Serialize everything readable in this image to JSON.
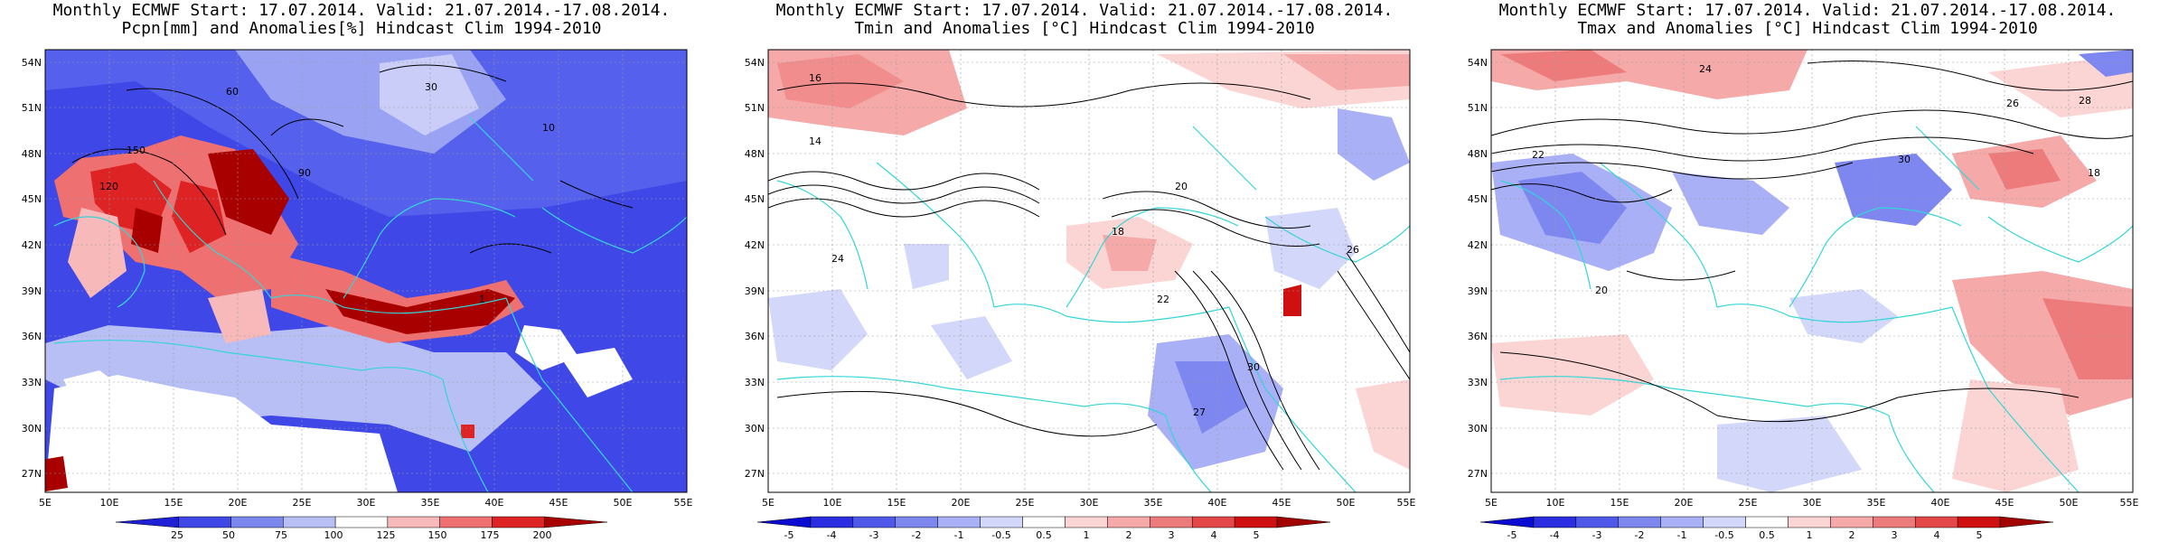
{
  "panels": [
    {
      "id": "precip",
      "title_line1": "Monthly ECMWF Start: 17.07.2014. Valid: 21.07.2014.-17.08.2014.",
      "title_line2": "Pcpn[mm] and Anomalies[%] Hindcast Clim 1994-2010",
      "lat_labels": [
        "54N",
        "51N",
        "48N",
        "45N",
        "42N",
        "39N",
        "36N",
        "33N",
        "30N",
        "27N"
      ],
      "lon_labels": [
        "5E",
        "10E",
        "15E",
        "20E",
        "25E",
        "30E",
        "35E",
        "40E",
        "45E",
        "50E",
        "55E"
      ],
      "colorbar_labels": [
        "25",
        "50",
        "75",
        "100",
        "125",
        "150",
        "175",
        "200"
      ],
      "colorbar_colors": [
        "#1f1fd6",
        "#3f47e6",
        "#7b86ee",
        "#b8bff5",
        "#ffffff",
        "#f7b9b9",
        "#ef7070",
        "#dd2323",
        "#a80000"
      ],
      "contour_labels": [
        "30",
        "60",
        "90",
        "10",
        "120",
        "150",
        "1"
      ]
    },
    {
      "id": "tmin",
      "title_line1": "Monthly ECMWF Start: 17.07.2014. Valid: 21.07.2014.-17.08.2014.",
      "title_line2": "Tmin and Anomalies [°C] Hindcast Clim 1994-2010",
      "lat_labels": [
        "54N",
        "51N",
        "48N",
        "45N",
        "42N",
        "39N",
        "36N",
        "33N",
        "30N",
        "27N"
      ],
      "lon_labels": [
        "5E",
        "10E",
        "15E",
        "20E",
        "25E",
        "30E",
        "35E",
        "40E",
        "45E",
        "50E",
        "55E"
      ],
      "colorbar_labels": [
        "-5",
        "-4",
        "-3",
        "-2",
        "-1",
        "-0.5",
        "0.5",
        "1",
        "2",
        "3",
        "4",
        "5"
      ],
      "colorbar_colors": [
        "#0a0ad0",
        "#2a2ee0",
        "#5058ea",
        "#7e86f0",
        "#a9b0f5",
        "#d3d7fa",
        "#ffffff",
        "#fbd4d4",
        "#f5a9a9",
        "#ee7b7b",
        "#e44747",
        "#cf1010",
        "#a00000"
      ],
      "contour_labels": [
        "16",
        "14",
        "18",
        "20",
        "22",
        "24",
        "26",
        "27",
        "30"
      ]
    },
    {
      "id": "tmax",
      "title_line1": "Monthly ECMWF Start: 17.07.2014. Valid: 21.07.2014.-17.08.2014.",
      "title_line2": "Tmax and Anomalies [°C] Hindcast Clim 1994-2010",
      "lat_labels": [
        "54N",
        "51N",
        "48N",
        "45N",
        "42N",
        "39N",
        "36N",
        "33N",
        "30N",
        "27N"
      ],
      "lon_labels": [
        "5E",
        "10E",
        "15E",
        "20E",
        "25E",
        "30E",
        "35E",
        "40E",
        "45E",
        "50E",
        "55E"
      ],
      "colorbar_labels": [
        "-5",
        "-4",
        "-3",
        "-2",
        "-1",
        "-0.5",
        "0.5",
        "1",
        "2",
        "3",
        "4",
        "5"
      ],
      "colorbar_colors": [
        "#0a0ad0",
        "#2a2ee0",
        "#5058ea",
        "#7e86f0",
        "#a9b0f5",
        "#d3d7fa",
        "#ffffff",
        "#fbd4d4",
        "#f5a9a9",
        "#ee7b7b",
        "#e44747",
        "#cf1010",
        "#a00000"
      ],
      "contour_labels": [
        "24",
        "26",
        "28",
        "30",
        "22",
        "20",
        "18"
      ]
    }
  ]
}
